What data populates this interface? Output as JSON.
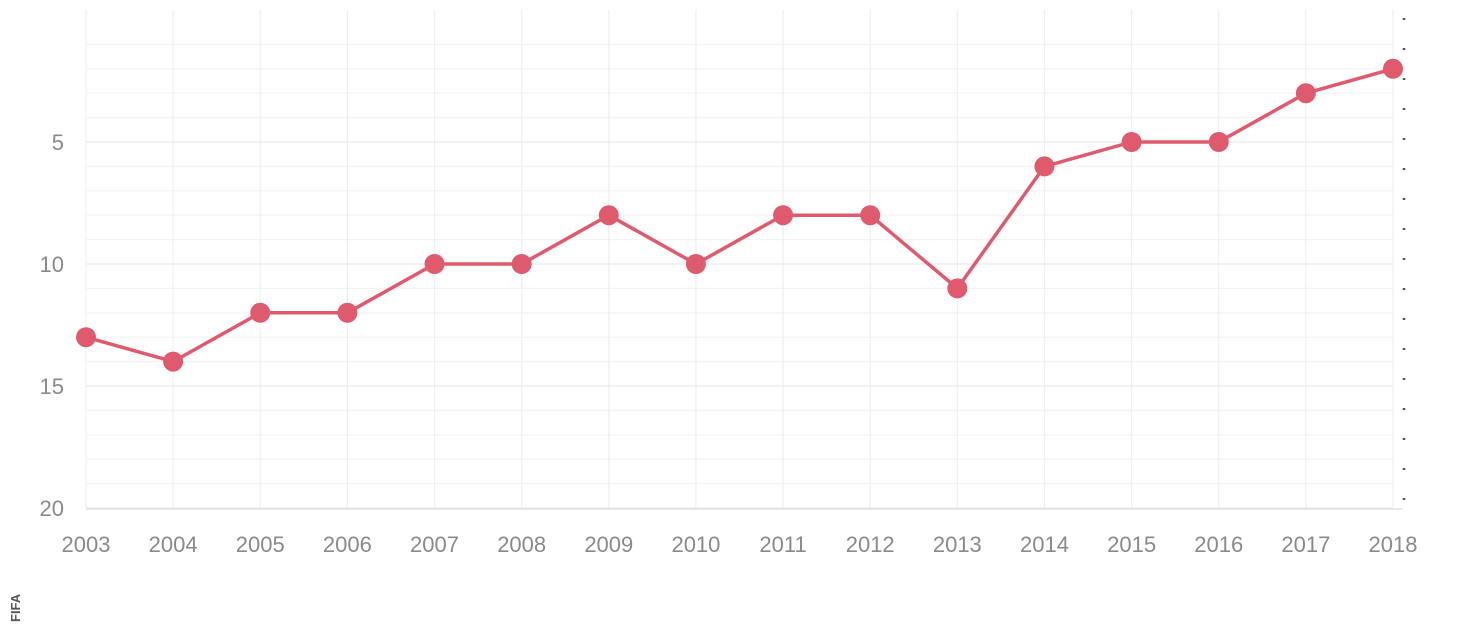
{
  "chart_data": {
    "type": "line",
    "title": "",
    "xlabel": "",
    "ylabel": "",
    "x": [
      "2003",
      "2004",
      "2005",
      "2006",
      "2007",
      "2008",
      "2009",
      "2010",
      "2011",
      "2012",
      "2013",
      "2014",
      "2015",
      "2016",
      "2017",
      "2018"
    ],
    "series": [
      {
        "values": [
          13,
          14,
          12,
          12,
          10,
          10,
          8,
          10,
          8,
          8,
          11,
          6,
          5,
          5,
          3,
          2
        ],
        "color": "#e05a6e"
      }
    ],
    "ylim": [
      20,
      0
    ],
    "y_reversed": true,
    "yticks": [
      5,
      10,
      15,
      20
    ],
    "grid": true,
    "legend": "none",
    "source": "FIFA"
  }
}
